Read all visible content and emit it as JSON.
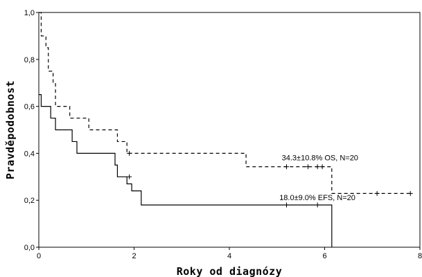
{
  "chart_data": {
    "type": "line",
    "step": true,
    "xlabel": "Roky od diagnózy",
    "ylabel": "Pravděpodobnost",
    "xlim": [
      0,
      8
    ],
    "ylim": [
      0,
      1
    ],
    "xticks": [
      0,
      2,
      4,
      6,
      8
    ],
    "yticks": [
      0.0,
      0.2,
      0.4,
      0.6,
      0.8,
      1.0
    ],
    "ytick_labels": [
      "0,0",
      "0,2",
      "0,4",
      "0,6",
      "0,8",
      "1,0"
    ],
    "xtick_labels": [
      "0",
      "2",
      "4",
      "6",
      "8"
    ],
    "grid": false,
    "series": [
      {
        "name": "34.3±10.8% OS, N=20",
        "style": "dashed",
        "color": "#000000",
        "x": [
          0,
          0.05,
          0.15,
          0.2,
          0.3,
          0.35,
          0.55,
          0.65,
          1.05,
          1.65,
          1.85,
          4.35,
          6.15,
          7.85
        ],
        "y": [
          1.0,
          0.9,
          0.85,
          0.75,
          0.7,
          0.6,
          0.6,
          0.55,
          0.5,
          0.45,
          0.4,
          0.343,
          0.229,
          0.229
        ],
        "censor_x": [
          1.9,
          5.2,
          5.65,
          5.85,
          5.95,
          7.1,
          7.8
        ],
        "censor_y": [
          0.4,
          0.343,
          0.343,
          0.343,
          0.343,
          0.229,
          0.229
        ]
      },
      {
        "name": "18.0±9.0% EFS, N=20",
        "style": "solid",
        "color": "#000000",
        "x": [
          0,
          0.05,
          0.25,
          0.35,
          0.7,
          0.8,
          1.6,
          1.65,
          1.85,
          1.95,
          2.15,
          6.15
        ],
        "y": [
          0.65,
          0.6,
          0.55,
          0.5,
          0.45,
          0.4,
          0.35,
          0.3,
          0.27,
          0.24,
          0.18,
          0.0
        ],
        "censor_x": [
          1.9,
          5.2,
          5.85
        ],
        "censor_y": [
          0.3,
          0.18,
          0.18
        ]
      }
    ],
    "annotations": [
      {
        "text": "34.3±10.8% OS, N=20",
        "x": 5.1,
        "y": 0.37
      },
      {
        "text": "18.0±9.0% EFS, N=20",
        "x": 5.05,
        "y": 0.2
      }
    ]
  }
}
